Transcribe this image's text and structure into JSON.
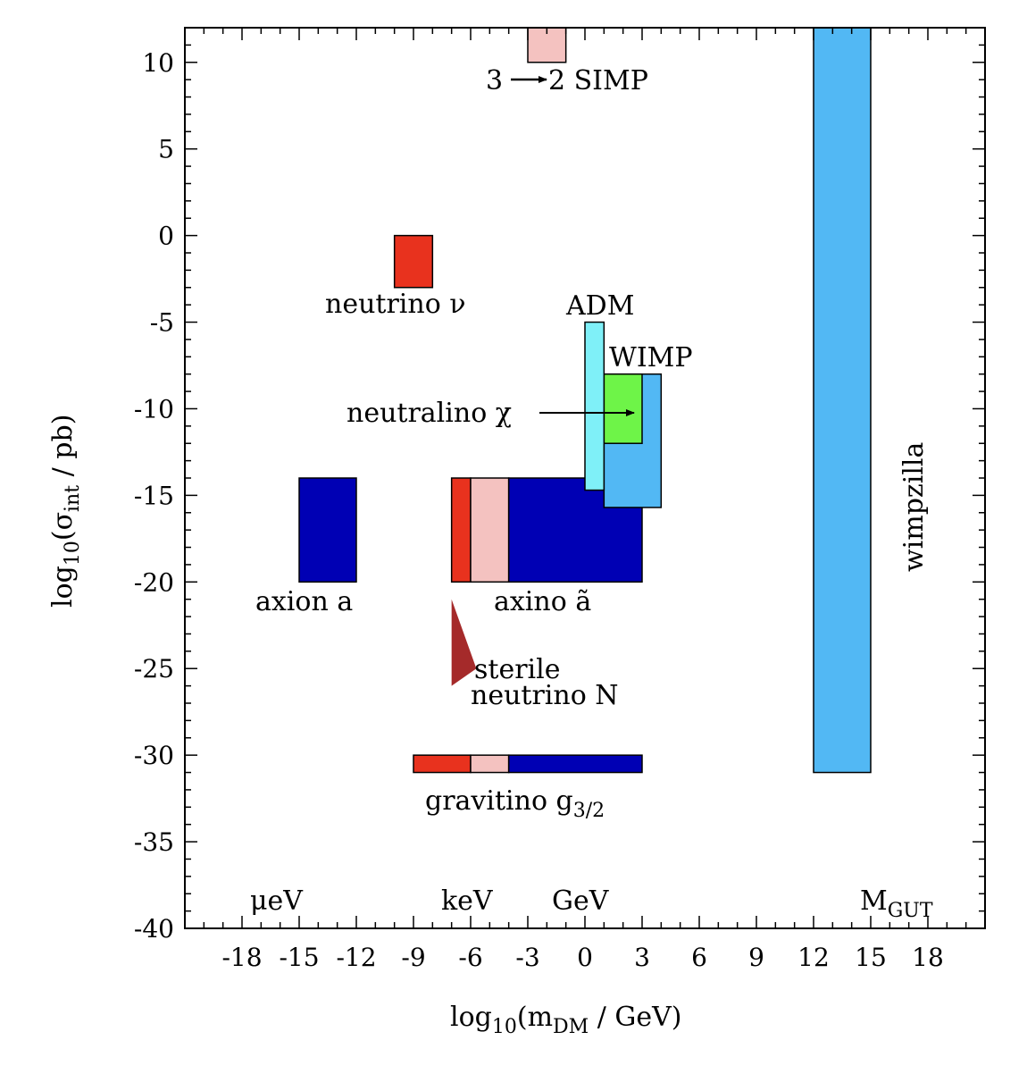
{
  "chart_data": {
    "type": "scatter",
    "xlabel": {
      "prefix": "log",
      "sub1": "10",
      "mid": "(m",
      "sub2": "DM",
      "suffix": " / GeV)"
    },
    "ylabel": {
      "prefix": "log",
      "sub1": "10",
      "mid": "(σ",
      "sub2": "int",
      "suffix": " / pb)"
    },
    "xlim": [
      -21,
      21
    ],
    "ylim": [
      -40,
      12
    ],
    "xticks": [
      "-18",
      "-15",
      "-12",
      "-9",
      "-6",
      "-3",
      "0",
      "3",
      "6",
      "9",
      "12",
      "15",
      "18"
    ],
    "yticks": [
      "10",
      "5",
      "0",
      "-5",
      "-10",
      "-15",
      "-20",
      "-25",
      "-30",
      "-35",
      "-40"
    ],
    "colors": {
      "red": "#e8321e",
      "pink": "#f4c2c0",
      "blue": "#0000b4",
      "lightblue": "#52b8f4",
      "cyan": "#7ff0f8",
      "green": "#6ef448",
      "darkred": "#a52a2a"
    },
    "regions": [
      {
        "name": "simp-box",
        "x": [
          -3,
          -1
        ],
        "y": [
          10,
          12
        ],
        "color": "pink"
      },
      {
        "name": "neutrino-box",
        "x": [
          -10,
          -8
        ],
        "y": [
          -3,
          0
        ],
        "color": "red"
      },
      {
        "name": "axion-box",
        "x": [
          -15,
          -12
        ],
        "y": [
          -20,
          -14
        ],
        "color": "blue"
      },
      {
        "name": "axino-red-box",
        "x": [
          -7,
          -6
        ],
        "y": [
          -20,
          -14
        ],
        "color": "red"
      },
      {
        "name": "axino-pink-box",
        "x": [
          -6,
          -4
        ],
        "y": [
          -20,
          -14
        ],
        "color": "pink"
      },
      {
        "name": "axino-blue-box",
        "x": [
          -4,
          3
        ],
        "y": [
          -20,
          -14
        ],
        "color": "blue"
      },
      {
        "name": "wimp-box",
        "x": [
          1,
          4
        ],
        "y": [
          -15.7,
          -8
        ],
        "color": "lightblue"
      },
      {
        "name": "neutralino-box",
        "x": [
          1,
          3
        ],
        "y": [
          -12,
          -8
        ],
        "color": "green"
      },
      {
        "name": "adm-box",
        "x": [
          0,
          1
        ],
        "y": [
          -14.7,
          -5
        ],
        "color": "cyan"
      },
      {
        "name": "gravitino-red-box",
        "x": [
          -9,
          -6
        ],
        "y": [
          -31,
          -30
        ],
        "color": "red"
      },
      {
        "name": "gravitino-pink-box",
        "x": [
          -6,
          -4
        ],
        "y": [
          -31,
          -30
        ],
        "color": "pink"
      },
      {
        "name": "gravitino-blue-box",
        "x": [
          -4,
          3
        ],
        "y": [
          -31,
          -30
        ],
        "color": "blue"
      },
      {
        "name": "wimpzilla-box",
        "x": [
          12,
          15
        ],
        "y": [
          -31,
          12
        ],
        "color": "lightblue"
      }
    ],
    "sterile_triangle": {
      "points": [
        [
          -7,
          -21
        ],
        [
          -7,
          -26
        ],
        [
          -5.7,
          -25
        ]
      ],
      "color": "darkred"
    },
    "labels": {
      "simp": {
        "pre": "3",
        "post": "2 SIMP"
      },
      "neutrino": "neutrino ν",
      "adm": "ADM",
      "wimp": "WIMP",
      "neutralino": "neutralino χ",
      "axion": "axion a",
      "axino": "axino ã",
      "sterile_line1": "sterile",
      "sterile_line2": "neutrino N",
      "gravitino": {
        "main": "gravitino g",
        "sub": "3/2"
      },
      "wimpzilla": "wimpzilla"
    },
    "mass_scales": {
      "uev": "μeV",
      "kev": "keV",
      "gev": "GeV",
      "mgut": {
        "main": "M",
        "sub": "GUT"
      }
    }
  }
}
